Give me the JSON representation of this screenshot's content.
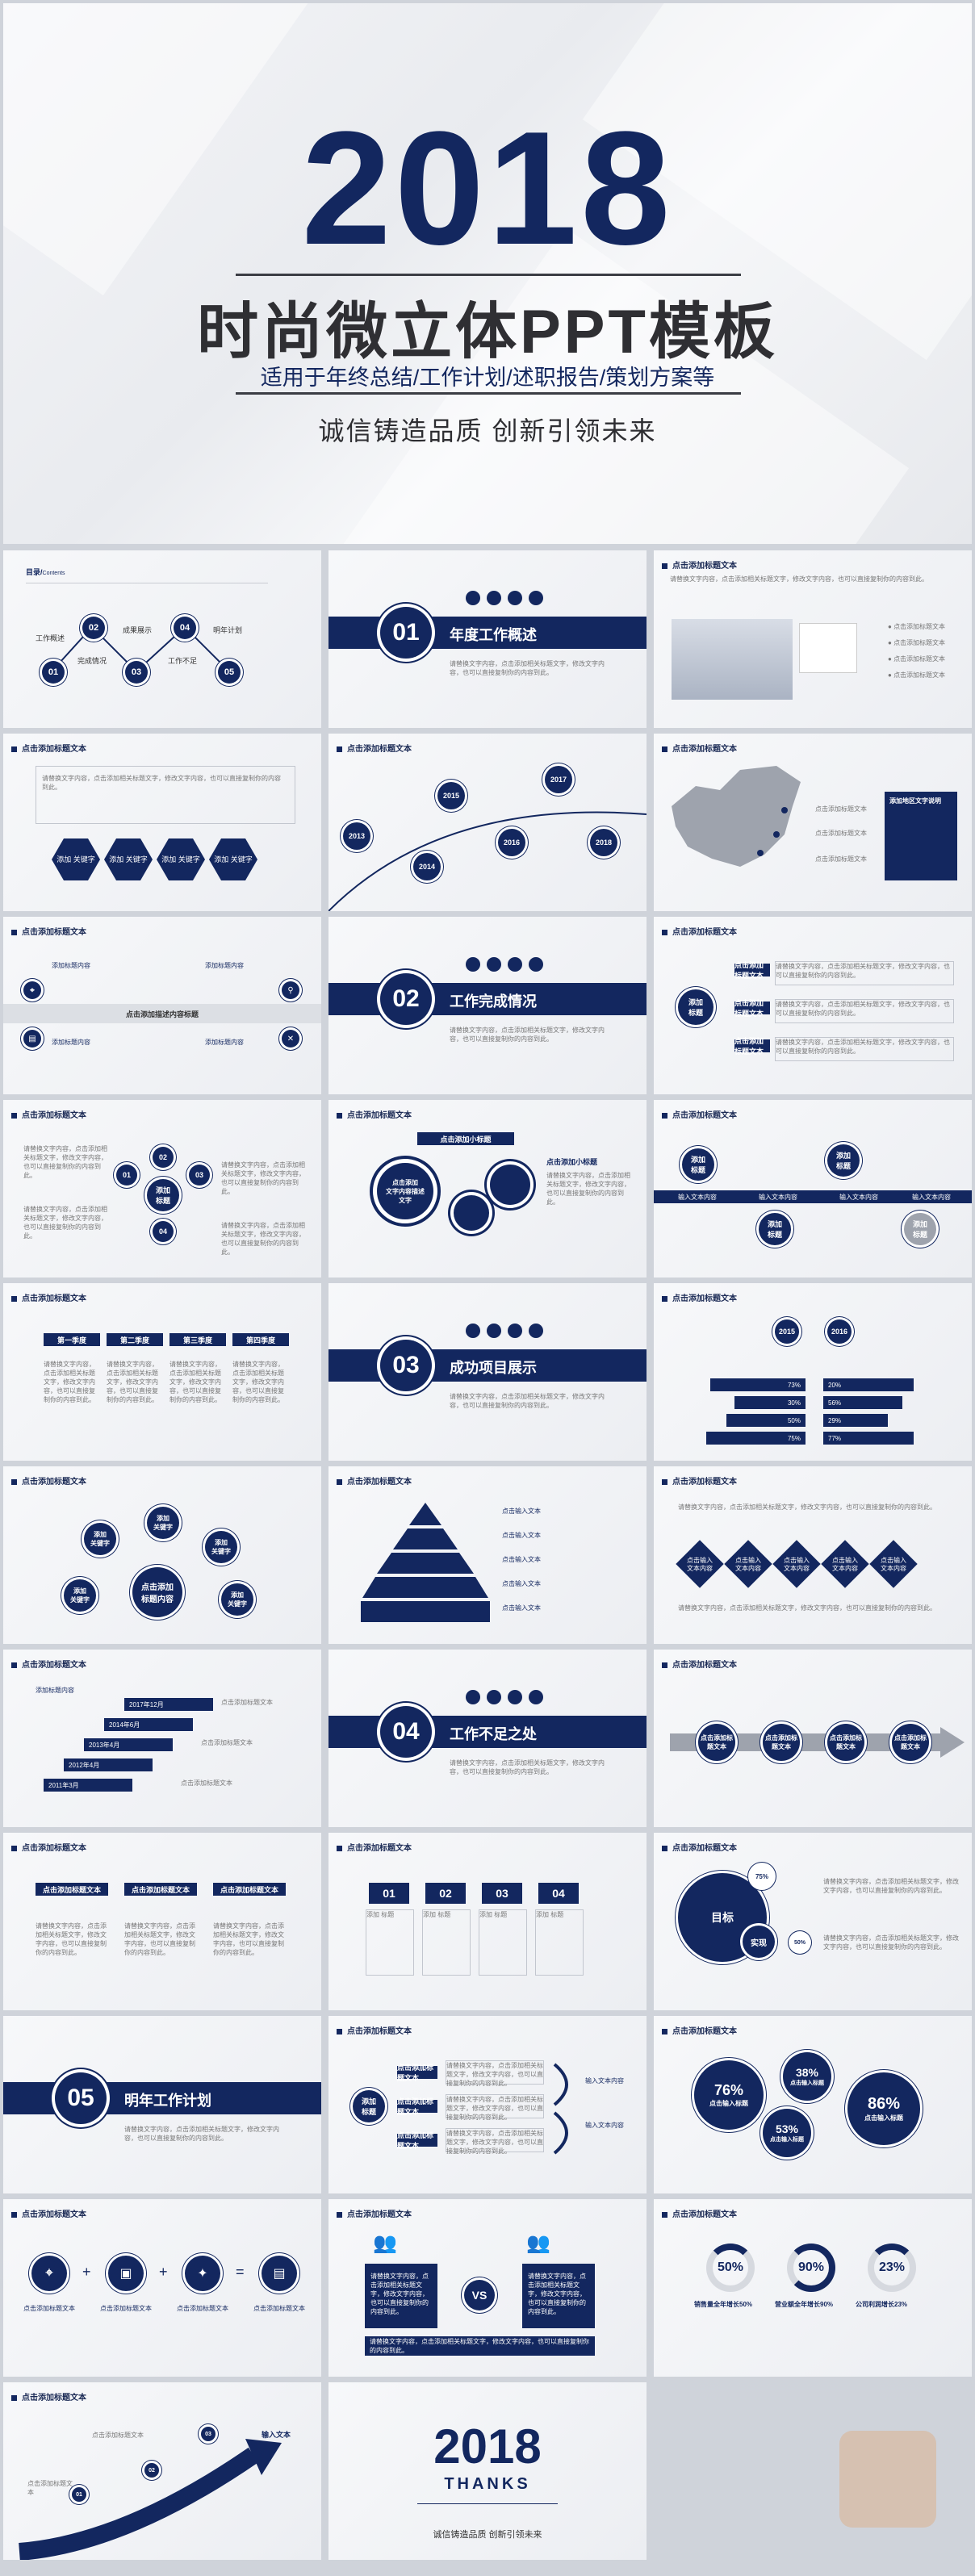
{
  "cover": {
    "year": "2018",
    "title": "时尚微立体PPT模板",
    "subtitle": "适用于年终总结/工作计划/述职报告/策划方案等",
    "slogan": "诚信铸造品质 创新引领未来"
  },
  "common": {
    "header": "点击添加标题文本",
    "body": "请替换文字内容，点击添加相关标题文字，修改文字内容，也可以直接复制你的内容到此。"
  },
  "toc": {
    "title": "目录/",
    "title_sub": "Contents",
    "items": [
      {
        "num": "01",
        "label": "工作概述"
      },
      {
        "num": "02",
        "label": "完成情况"
      },
      {
        "num": "03",
        "label": "成果展示"
      },
      {
        "num": "04",
        "label": "工作不足"
      },
      {
        "num": "05",
        "label": "明年计划"
      }
    ]
  },
  "sections": [
    {
      "num": "01",
      "title": "年度工作概述"
    },
    {
      "num": "02",
      "title": "工作完成情况"
    },
    {
      "num": "03",
      "title": "成功项目展示"
    },
    {
      "num": "04",
      "title": "工作不足之处"
    },
    {
      "num": "05",
      "title": "明年工作计划"
    }
  ],
  "keyword": "添加\n关键字",
  "years": [
    "2013",
    "2014",
    "2015",
    "2016",
    "2017",
    "2018"
  ],
  "map_box_title": "添加地区文字说明",
  "center_title": "点击添加描述内容标题",
  "content_title": "添加标题内容",
  "add_title": "添加\n标题",
  "gear_title": "点击添加小标题",
  "gear_center": "点击添加\n文字内容描述\n文字",
  "input_text": "输入文本内容",
  "quarters": [
    "第一季度",
    "第二季度",
    "第三季度",
    "第四季度"
  ],
  "percent_years": [
    "2015",
    "2016"
  ],
  "percent_rows": [
    {
      "a": "73%",
      "b": "20%"
    },
    {
      "a": "30%",
      "b": "56%"
    },
    {
      "a": "50%",
      "b": "29%"
    },
    {
      "a": "75%",
      "b": "77%"
    }
  ],
  "pyramid": [
    "点击输入文本",
    "点击输入文本",
    "点击输入文本",
    "点击输入文本",
    "点击输入文本"
  ],
  "center_click": "点击添加\n标题内容",
  "diamonds": "点击输入\n文本内容",
  "dates": [
    "2017年12月",
    "2014年6月",
    "2013年4月",
    "2012年4月",
    "2011年3月"
  ],
  "steps": [
    "01",
    "02",
    "03",
    "04"
  ],
  "goal": "目标",
  "realize": "实现",
  "pcts_big": [
    {
      "v": "76%",
      "t": "点击输入标题"
    },
    {
      "v": "38%",
      "t": "点击输入标题"
    },
    {
      "v": "53%",
      "t": "点击输入标题"
    },
    {
      "v": "86%",
      "t": "点击输入标题"
    }
  ],
  "vs": "VS",
  "rings": [
    {
      "v": "50%",
      "t": "销售量全年增长50%"
    },
    {
      "v": "90%",
      "t": "营业额全年增长90%"
    },
    {
      "v": "23%",
      "t": "公司利润增长23%"
    }
  ],
  "arrow_title": "输入文本",
  "thanks": {
    "year": "2018",
    "word": "THANKS",
    "slogan": "诚信铸造品质 创新引领未来"
  },
  "colors": {
    "navy": "#13275f",
    "gray": "#9ea3ad"
  }
}
